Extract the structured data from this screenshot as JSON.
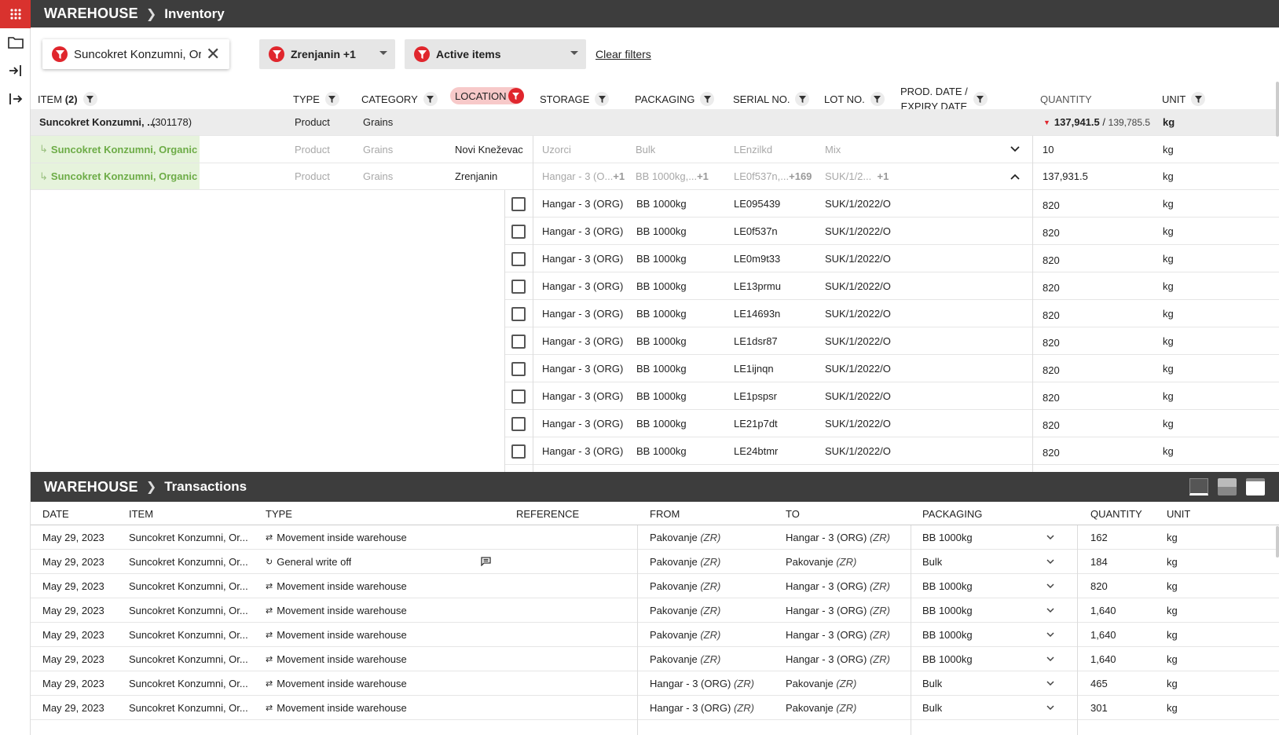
{
  "app": {
    "name": "WAREHOUSE"
  },
  "inventory": {
    "breadcrumb_page": "Inventory",
    "filters": {
      "item_filter": "Suncokret Konzumni, Or",
      "location_filter": "Zrenjanin +1",
      "status_filter": "Active items",
      "clear_label": "Clear filters"
    },
    "columns": {
      "item": "ITEM",
      "item_count": "(2)",
      "type": "TYPE",
      "category": "CATEGORY",
      "location": "LOCATION",
      "storage": "STORAGE",
      "packaging": "PACKAGING",
      "serial": "SERIAL NO.",
      "lot": "LOT NO.",
      "prod_date_1": "PROD. DATE /",
      "prod_date_2": "EXPIRY DATE",
      "quantity": "QUANTITY",
      "unit": "UNIT"
    },
    "group_row": {
      "item": "Suncokret Konzumni, ...",
      "code": "(301178)",
      "type": "Product",
      "category": "Grains",
      "quantity_main": "137,941.5",
      "quantity_sep": "/",
      "quantity_total": "139,785.5",
      "unit": "kg"
    },
    "location_rows": [
      {
        "item": "Suncokret Konzumni, Organic",
        "type": "Product",
        "category": "Grains",
        "location": "Novi Kneževac",
        "storage": "Uzorci",
        "storage_more": "",
        "packaging": "Bulk",
        "packaging_more": "",
        "serial": "LEnzilkd",
        "serial_more": "",
        "lot": "Mix",
        "lot_more": "",
        "quantity": "10",
        "unit": "kg",
        "expanded": false
      },
      {
        "item": "Suncokret Konzumni, Organic",
        "type": "Product",
        "category": "Grains",
        "location": "Zrenjanin",
        "storage": "Hangar - 3 (O...",
        "storage_more": "+1",
        "packaging": "BB 1000kg,...",
        "packaging_more": "+1",
        "serial": "LE0f537n,...",
        "serial_more": "+169",
        "lot": "SUK/1/2...",
        "lot_more": "+1",
        "quantity": "137,931.5",
        "unit": "kg",
        "expanded": true
      }
    ],
    "detail_rows": [
      {
        "storage": "Hangar - 3 (ORG)",
        "packaging": "BB 1000kg",
        "serial": "LE095439",
        "lot": "SUK/1/2022/O",
        "quantity": "820",
        "unit": "kg"
      },
      {
        "storage": "Hangar - 3 (ORG)",
        "packaging": "BB 1000kg",
        "serial": "LE0f537n",
        "lot": "SUK/1/2022/O",
        "quantity": "820",
        "unit": "kg"
      },
      {
        "storage": "Hangar - 3 (ORG)",
        "packaging": "BB 1000kg",
        "serial": "LE0m9t33",
        "lot": "SUK/1/2022/O",
        "quantity": "820",
        "unit": "kg"
      },
      {
        "storage": "Hangar - 3 (ORG)",
        "packaging": "BB 1000kg",
        "serial": "LE13prmu",
        "lot": "SUK/1/2022/O",
        "quantity": "820",
        "unit": "kg"
      },
      {
        "storage": "Hangar - 3 (ORG)",
        "packaging": "BB 1000kg",
        "serial": "LE14693n",
        "lot": "SUK/1/2022/O",
        "quantity": "820",
        "unit": "kg"
      },
      {
        "storage": "Hangar - 3 (ORG)",
        "packaging": "BB 1000kg",
        "serial": "LE1dsr87",
        "lot": "SUK/1/2022/O",
        "quantity": "820",
        "unit": "kg"
      },
      {
        "storage": "Hangar - 3 (ORG)",
        "packaging": "BB 1000kg",
        "serial": "LE1ijnqn",
        "lot": "SUK/1/2022/O",
        "quantity": "820",
        "unit": "kg"
      },
      {
        "storage": "Hangar - 3 (ORG)",
        "packaging": "BB 1000kg",
        "serial": "LE1pspsr",
        "lot": "SUK/1/2022/O",
        "quantity": "820",
        "unit": "kg"
      },
      {
        "storage": "Hangar - 3 (ORG)",
        "packaging": "BB 1000kg",
        "serial": "LE21p7dt",
        "lot": "SUK/1/2022/O",
        "quantity": "820",
        "unit": "kg"
      },
      {
        "storage": "Hangar - 3 (ORG)",
        "packaging": "BB 1000kg",
        "serial": "LE24btmr",
        "lot": "SUK/1/2022/O",
        "quantity": "820",
        "unit": "kg"
      }
    ]
  },
  "transactions": {
    "breadcrumb_page": "Transactions",
    "columns": {
      "date": "DATE",
      "item": "ITEM",
      "type": "TYPE",
      "reference": "REFERENCE",
      "from": "FROM",
      "to": "TO",
      "packaging": "PACKAGING",
      "quantity": "QUANTITY",
      "unit": "UNIT"
    },
    "rows": [
      {
        "date": "May 29, 2023",
        "item": "Suncokret Konzumni, Or...",
        "type": "Movement inside warehouse",
        "type_icon": "move-arrows-icon",
        "has_note": false,
        "from": "Pakovanje",
        "from_code": "(ZR)",
        "to": "Hangar - 3 (ORG)",
        "to_code": "(ZR)",
        "packaging": "BB 1000kg",
        "quantity": "162",
        "unit": "kg"
      },
      {
        "date": "May 29, 2023",
        "item": "Suncokret Konzumni, Or...",
        "type": "General write off",
        "type_icon": "refresh-icon",
        "has_note": true,
        "from": "Pakovanje",
        "from_code": "(ZR)",
        "to": "Pakovanje",
        "to_code": "(ZR)",
        "packaging": "Bulk",
        "quantity": "184",
        "unit": "kg"
      },
      {
        "date": "May 29, 2023",
        "item": "Suncokret Konzumni, Or...",
        "type": "Movement inside warehouse",
        "type_icon": "move-arrows-icon",
        "has_note": false,
        "from": "Pakovanje",
        "from_code": "(ZR)",
        "to": "Hangar - 3 (ORG)",
        "to_code": "(ZR)",
        "packaging": "BB 1000kg",
        "quantity": "820",
        "unit": "kg"
      },
      {
        "date": "May 29, 2023",
        "item": "Suncokret Konzumni, Or...",
        "type": "Movement inside warehouse",
        "type_icon": "move-arrows-icon",
        "has_note": false,
        "from": "Pakovanje",
        "from_code": "(ZR)",
        "to": "Hangar - 3 (ORG)",
        "to_code": "(ZR)",
        "packaging": "BB 1000kg",
        "quantity": "1,640",
        "unit": "kg"
      },
      {
        "date": "May 29, 2023",
        "item": "Suncokret Konzumni, Or...",
        "type": "Movement inside warehouse",
        "type_icon": "move-arrows-icon",
        "has_note": false,
        "from": "Pakovanje",
        "from_code": "(ZR)",
        "to": "Hangar - 3 (ORG)",
        "to_code": "(ZR)",
        "packaging": "BB 1000kg",
        "quantity": "1,640",
        "unit": "kg"
      },
      {
        "date": "May 29, 2023",
        "item": "Suncokret Konzumni, Or...",
        "type": "Movement inside warehouse",
        "type_icon": "move-arrows-icon",
        "has_note": false,
        "from": "Pakovanje",
        "from_code": "(ZR)",
        "to": "Hangar - 3 (ORG)",
        "to_code": "(ZR)",
        "packaging": "BB 1000kg",
        "quantity": "1,640",
        "unit": "kg"
      },
      {
        "date": "May 29, 2023",
        "item": "Suncokret Konzumni, Or...",
        "type": "Movement inside warehouse",
        "type_icon": "move-arrows-icon",
        "has_note": false,
        "from": "Hangar - 3 (ORG)",
        "from_code": "(ZR)",
        "to": "Pakovanje",
        "to_code": "(ZR)",
        "packaging": "Bulk",
        "quantity": "465",
        "unit": "kg"
      },
      {
        "date": "May 29, 2023",
        "item": "Suncokret Konzumni, Or...",
        "type": "Movement inside warehouse",
        "type_icon": "move-arrows-icon",
        "has_note": false,
        "from": "Hangar - 3 (ORG)",
        "from_code": "(ZR)",
        "to": "Pakovanje",
        "to_code": "(ZR)",
        "packaging": "Bulk",
        "quantity": "301",
        "unit": "kg"
      }
    ]
  },
  "colors": {
    "accent": "#e0262d",
    "topbar": "#3d3d3d",
    "green": "#6dac47",
    "location_chip": "#f7c9c9"
  }
}
